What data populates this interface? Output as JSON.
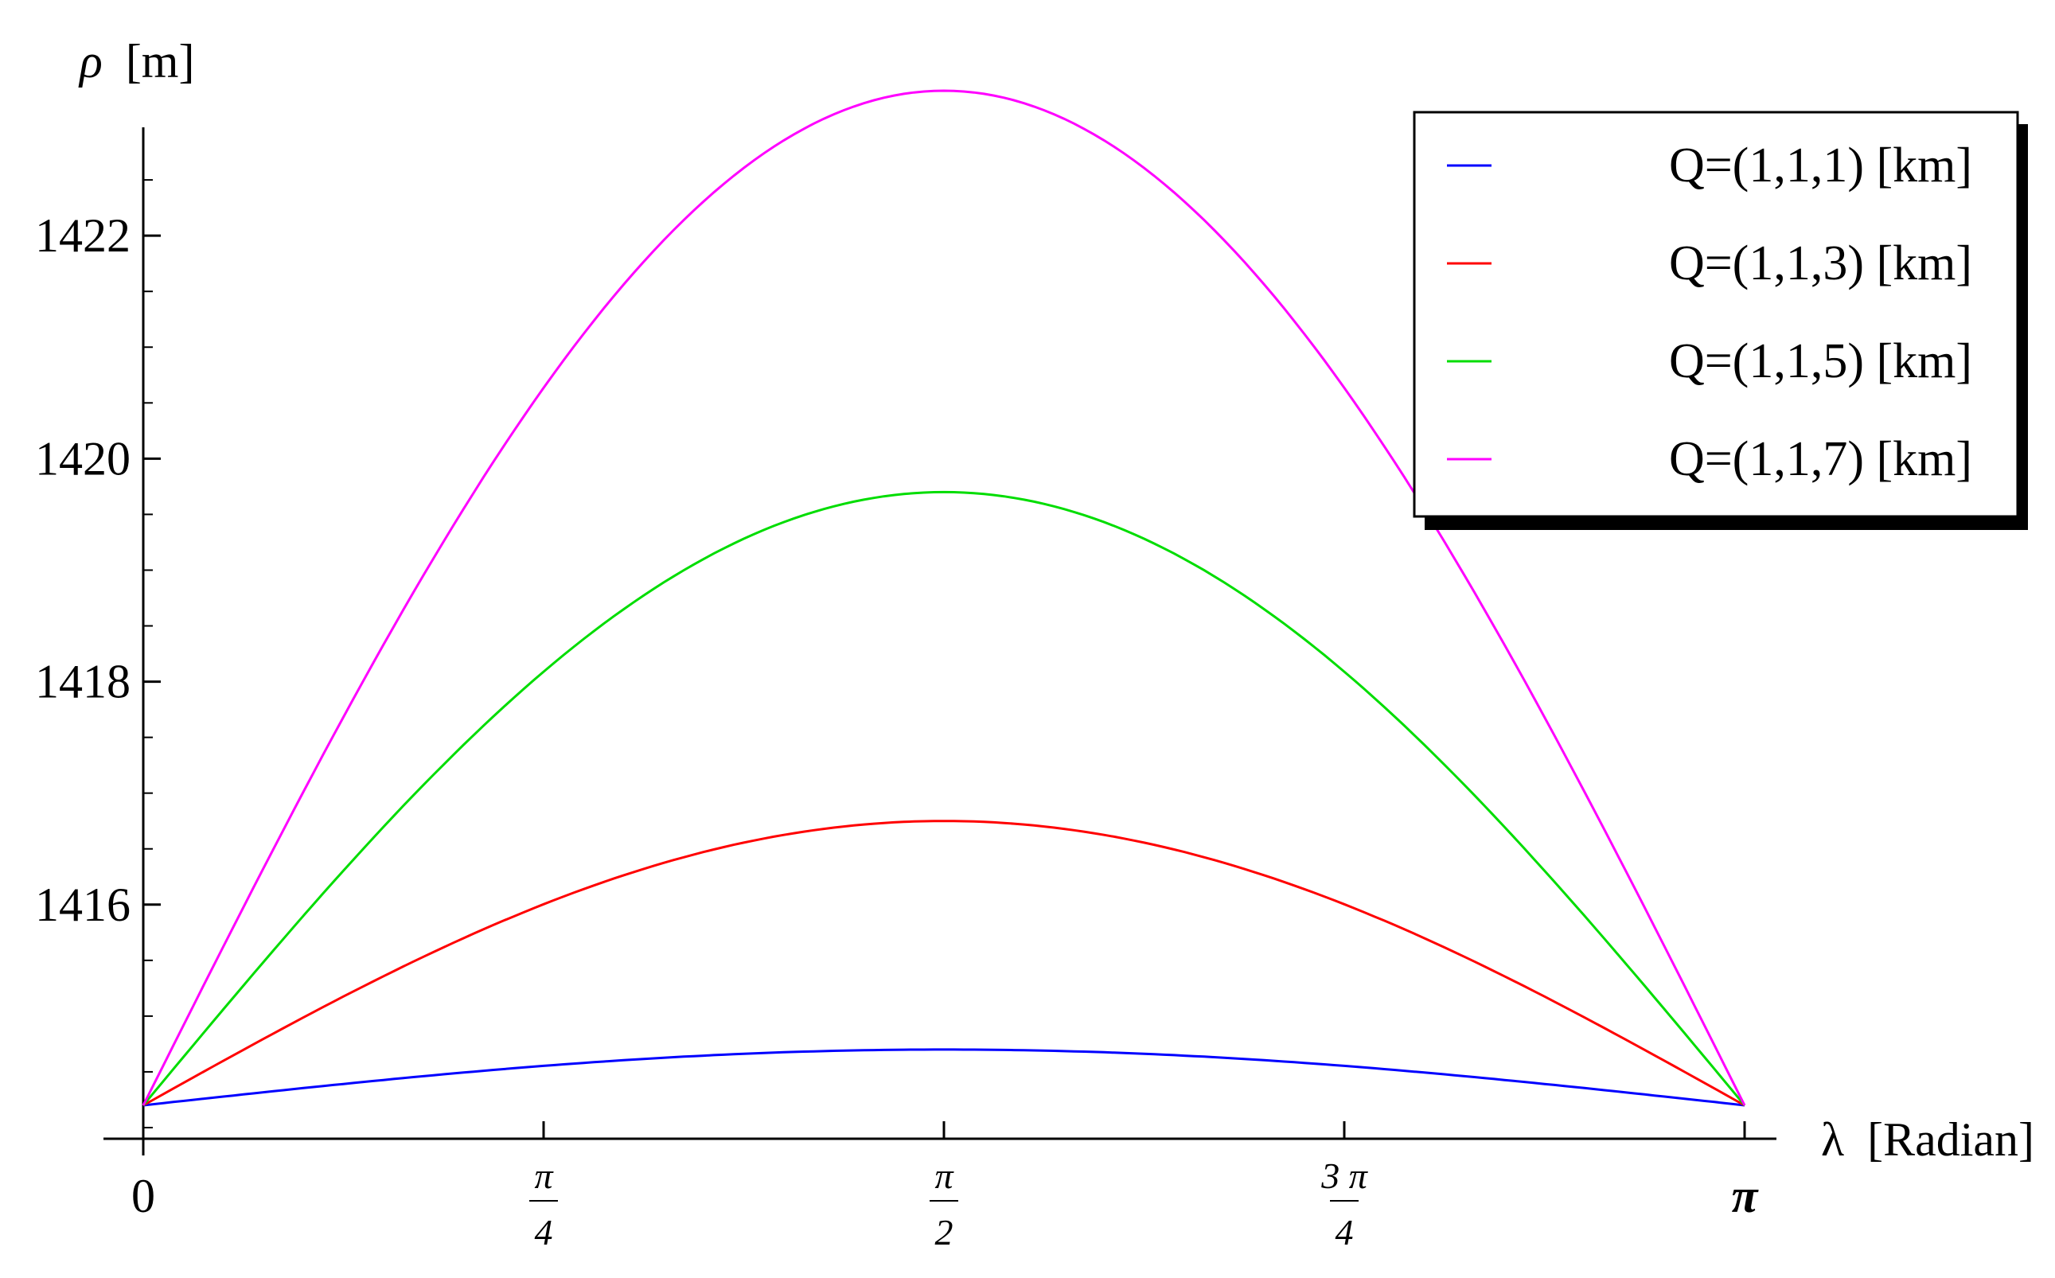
{
  "chart_data": {
    "type": "line",
    "ylabel_symbol": "ρ",
    "ylabel_unit": "[m]",
    "xlabel_symbol": "λ",
    "xlabel_unit": "[Radian]",
    "xlim": [
      0,
      3.14159265
    ],
    "ylim": [
      1413.9,
      1423.4
    ],
    "x_origin_label": "0",
    "x_ticks": [
      {
        "value": 0.78539816,
        "num": "π",
        "den": "4"
      },
      {
        "value": 1.57079633,
        "num": "π",
        "den": "2"
      },
      {
        "value": 2.35619449,
        "num": "3 π",
        "den": "4"
      }
    ],
    "x_end_label": "π",
    "y_ticks": [
      1416,
      1418,
      1420,
      1422
    ],
    "y_ticks_labels": [
      "1416",
      "1418",
      "1420",
      "1422"
    ],
    "y_minor_step": 0.5,
    "legend_position": "top-right",
    "series": [
      {
        "name": "Q=(1,1,1) [km]",
        "color": "#0000ff",
        "base": 1414.2,
        "peak": 1414.7
      },
      {
        "name": "Q=(1,1,3) [km]",
        "color": "#ff0000",
        "base": 1414.2,
        "peak": 1416.75
      },
      {
        "name": "Q=(1,1,5) [km]",
        "color": "#00dd00",
        "base": 1414.2,
        "peak": 1419.7
      },
      {
        "name": "Q=(1,1,7) [km]",
        "color": "#ff00ff",
        "base": 1414.2,
        "peak": 1423.3
      }
    ]
  }
}
